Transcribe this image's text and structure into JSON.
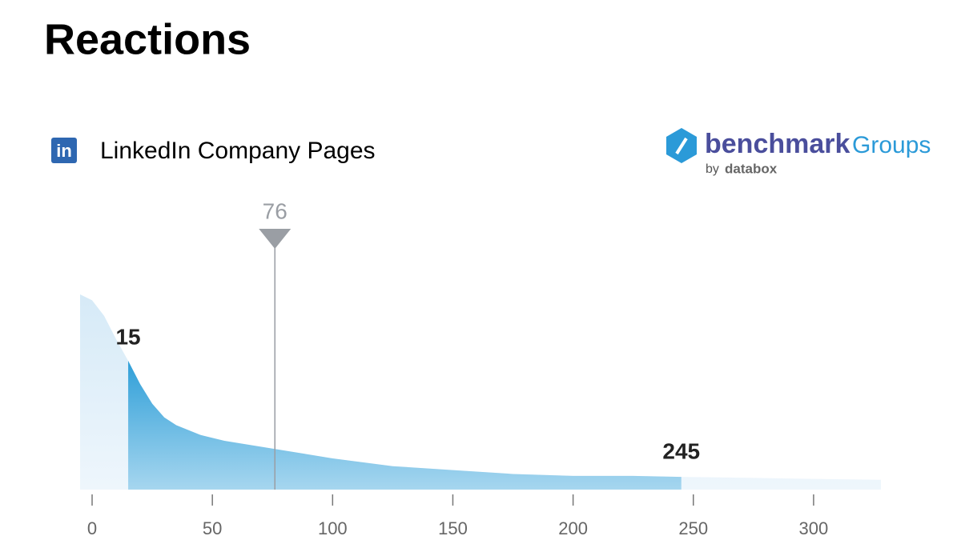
{
  "chart_data": {
    "type": "area",
    "title": "Reactions",
    "subtitle": "LinkedIn Company Pages",
    "icon_text": "in",
    "logo": {
      "brand": "benchmark",
      "product": "Groups",
      "by": "by",
      "company": "databox"
    },
    "x": [
      -5,
      0,
      5,
      10,
      15,
      20,
      25,
      30,
      35,
      45,
      55,
      75,
      100,
      125,
      150,
      175,
      200,
      225,
      245,
      275,
      300,
      328
    ],
    "values": [
      100,
      97,
      89,
      77,
      66,
      54,
      44,
      37,
      33,
      28,
      25,
      21,
      16,
      12,
      10,
      8,
      7,
      7,
      6.5,
      6,
      5.5,
      5
    ],
    "range_low": 15,
    "range_high": 245,
    "marker": 76,
    "xlim": [
      -5,
      328
    ],
    "ylim": [
      0,
      100
    ],
    "xticks": [
      0,
      50,
      100,
      150,
      200,
      250,
      300
    ],
    "color": "#2f9fd8",
    "background_color": "#dcedf8",
    "marker_color": "#9a9ea4"
  }
}
